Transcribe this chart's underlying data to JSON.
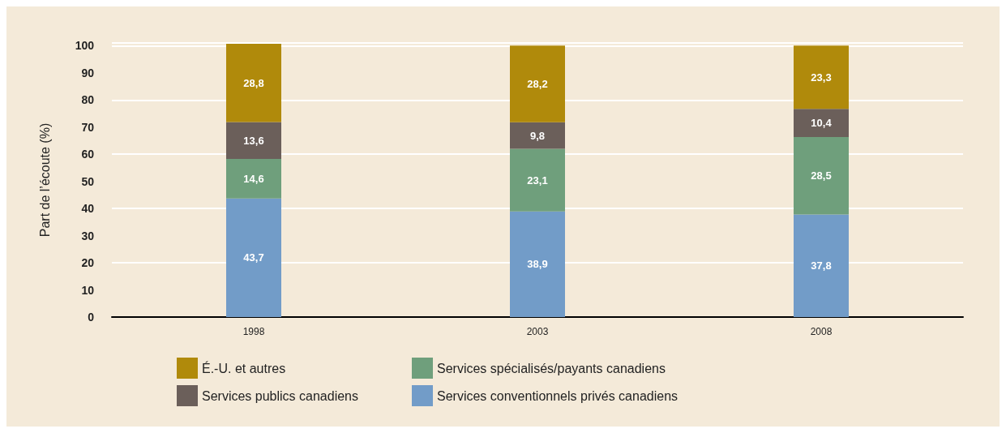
{
  "chart_data": {
    "type": "bar",
    "stacked": true,
    "ylabel": "Part de l’écoute (%)",
    "categories": [
      "1998",
      "2003",
      "2008"
    ],
    "ylim": [
      0,
      101
    ],
    "yticks": [
      0,
      10,
      20,
      30,
      40,
      50,
      60,
      70,
      80,
      90,
      100
    ],
    "grid": "y",
    "legend": "bottom",
    "series": [
      {
        "name": "Services conventionnels privés canadiens",
        "color": "#729cc8",
        "values": [
          43.7,
          38.9,
          37.8
        ],
        "value_labels": [
          "43,7",
          "38,9",
          "37,8"
        ]
      },
      {
        "name": "Services spécialisés/payants canadiens",
        "color": "#6f9f7c",
        "values": [
          14.6,
          23.1,
          28.5
        ],
        "value_labels": [
          "14,6",
          "23,1",
          "28,5"
        ]
      },
      {
        "name": "Services publics canadiens",
        "color": "#6b5f5a",
        "values": [
          13.6,
          9.8,
          10.4
        ],
        "value_labels": [
          "13,6",
          "9,8",
          "10,4"
        ]
      },
      {
        "name": "É.-U. et autres",
        "color": "#b08a0b",
        "values": [
          28.8,
          28.2,
          23.3
        ],
        "value_labels": [
          "28,8",
          "28,2",
          "23,3"
        ]
      }
    ]
  }
}
